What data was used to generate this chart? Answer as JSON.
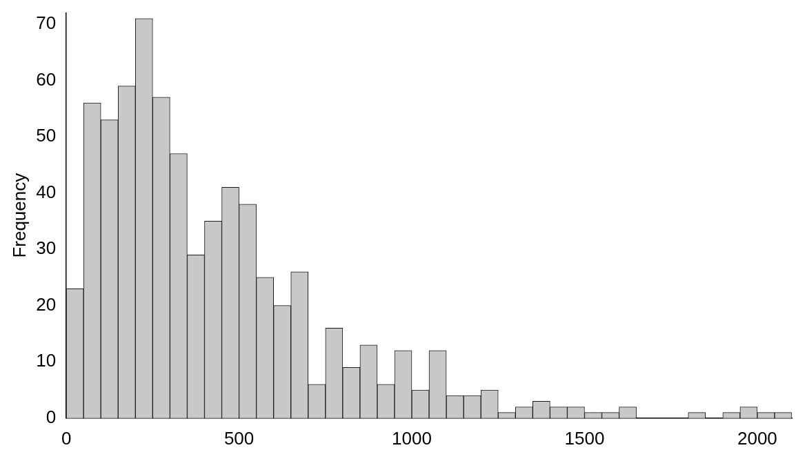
{
  "chart_data": {
    "type": "histogram",
    "ylabel": "Frequency",
    "bins": [
      0,
      50,
      100,
      150,
      200,
      250,
      300,
      350,
      400,
      450,
      500,
      550,
      600,
      650,
      700,
      750,
      800,
      850,
      900,
      950,
      1000,
      1050,
      1100,
      1150,
      1200,
      1250,
      1300,
      1350,
      1400,
      1450,
      1500,
      1550,
      1600,
      1650,
      1700,
      1750,
      1800,
      1850,
      1900,
      1950,
      2000,
      2050,
      2100
    ],
    "values": [
      23,
      56,
      53,
      59,
      71,
      57,
      47,
      29,
      35,
      41,
      38,
      25,
      20,
      26,
      6,
      16,
      9,
      13,
      6,
      12,
      5,
      12,
      4,
      4,
      5,
      1,
      2,
      3,
      2,
      2,
      1,
      1,
      2,
      0,
      0,
      0,
      1,
      0,
      1,
      2,
      1,
      1
    ],
    "color": "#c8c8c8",
    "xlim": [
      0,
      2100
    ],
    "xticks": [
      0,
      500,
      1000,
      1500,
      2000
    ],
    "ylim": [
      0,
      72
    ],
    "yticks": [
      0,
      10,
      20,
      30,
      40,
      50,
      60,
      70
    ],
    "grid": false,
    "legend": false
  }
}
